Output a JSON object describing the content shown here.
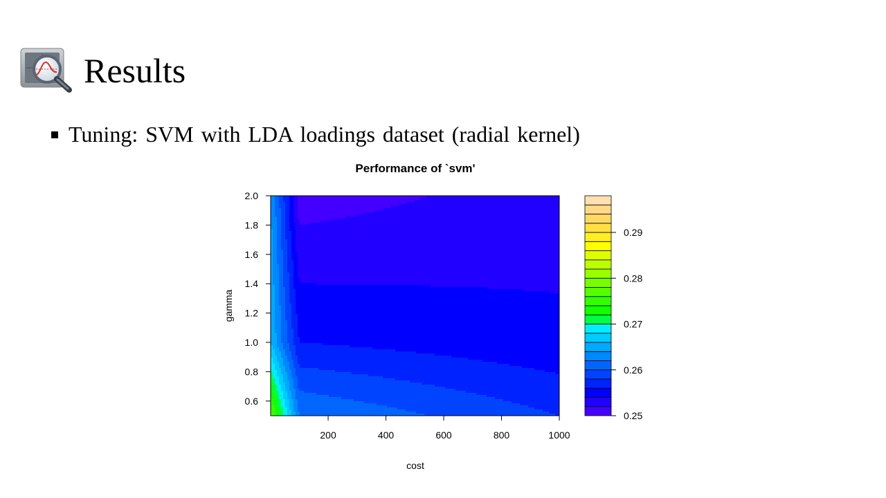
{
  "slide": {
    "title": "Results",
    "icon": "magnifier-chart-icon",
    "bullet": "Tuning: SVM with LDA loadings dataset (radial kernel)"
  },
  "chart_data": {
    "type": "heatmap",
    "subtype": "filled-contour",
    "title": "Performance of `svm'",
    "xlabel": "cost",
    "ylabel": "gamma",
    "xlim": [
      1,
      1000
    ],
    "ylim": [
      0.5,
      2.0
    ],
    "xticks": [
      200,
      400,
      600,
      800,
      1000
    ],
    "yticks": [
      0.6,
      0.8,
      1.0,
      1.2,
      1.4,
      1.6,
      1.8,
      2.0
    ],
    "x": [
      1,
      100,
      1000
    ],
    "y": [
      0.5,
      1.0,
      2.0
    ],
    "z": [
      [
        0.277,
        0.262,
        0.258
      ],
      [
        0.266,
        0.256,
        0.2545
      ],
      [
        0.264,
        0.251,
        0.253
      ]
    ],
    "legend": {
      "ticks": [
        0.25,
        0.26,
        0.27,
        0.28,
        0.29
      ],
      "range": [
        0.25,
        0.298
      ],
      "levels": [
        0.25,
        0.252,
        0.254,
        0.256,
        0.258,
        0.26,
        0.262,
        0.264,
        0.266,
        0.268,
        0.27,
        0.272,
        0.274,
        0.276,
        0.278,
        0.28,
        0.282,
        0.284,
        0.286,
        0.288,
        0.29,
        0.292,
        0.294,
        0.296,
        0.298
      ],
      "colors": [
        "#4400ff",
        "#2200ff",
        "#0000ff",
        "#0022ff",
        "#0044ff",
        "#0066ff",
        "#0088ff",
        "#00aaff",
        "#00ccff",
        "#00eeff",
        "#00ff44",
        "#11ff00",
        "#33ff00",
        "#55ff00",
        "#77ff00",
        "#99ff00",
        "#bbff00",
        "#ddff00",
        "#ffff00",
        "#ffee22",
        "#ffe044",
        "#ffd866",
        "#ffd888",
        "#ffe0b0"
      ]
    }
  }
}
